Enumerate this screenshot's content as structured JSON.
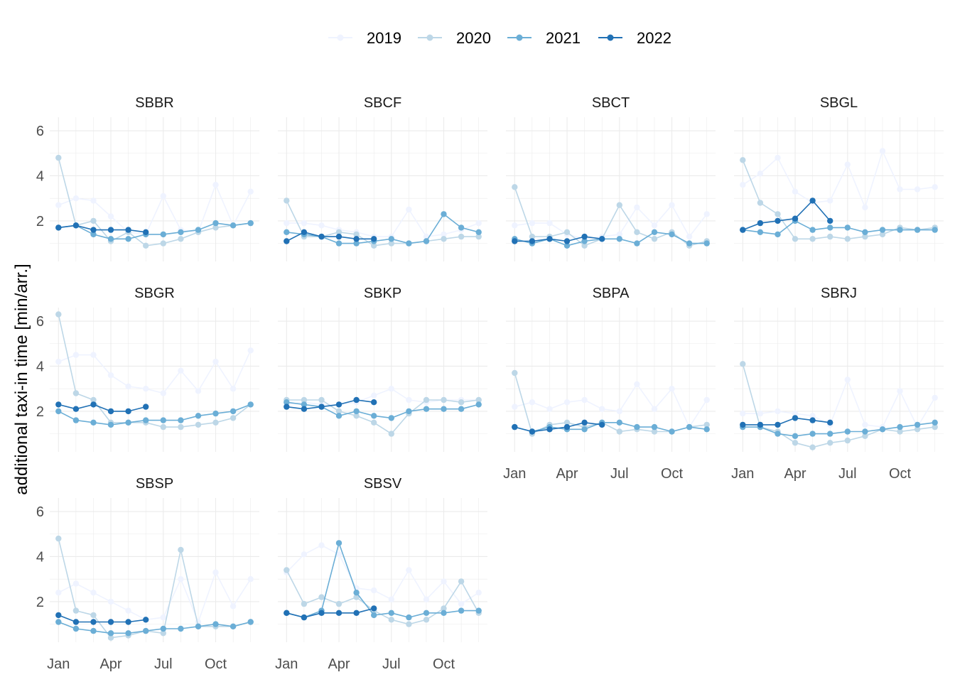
{
  "chart_data": {
    "type": "line",
    "ylabel": "additional taxi-in time [min/arr.]",
    "x_ticks": [
      "Jan",
      "Apr",
      "Jul",
      "Oct"
    ],
    "x_tick_months": [
      1,
      4,
      7,
      10
    ],
    "y_ticks": [
      2,
      4,
      6
    ],
    "ylim": [
      0.2,
      6.6
    ],
    "xlim": [
      0.5,
      12.5
    ],
    "legend_position": "top",
    "grid": true,
    "series_names": [
      "2019",
      "2020",
      "2021",
      "2022"
    ],
    "series_colors": [
      "#eff3ff",
      "#bdd7e7",
      "#6baed6",
      "#2171b5"
    ],
    "months": [
      1,
      2,
      3,
      4,
      5,
      6,
      7,
      8,
      9,
      10,
      11,
      12
    ],
    "panels": [
      {
        "name": "SBBR",
        "series": [
          {
            "name": "2019",
            "values": [
              2.7,
              3.0,
              2.9,
              2.2,
              1.5,
              1.4,
              3.1,
              1.6,
              1.5,
              3.6,
              1.8,
              3.3
            ]
          },
          {
            "name": "2020",
            "values": [
              4.8,
              1.8,
              2.0,
              1.1,
              1.5,
              0.9,
              1.0,
              1.2,
              1.5,
              1.7,
              1.8,
              1.9
            ]
          },
          {
            "name": "2021",
            "values": [
              1.7,
              1.8,
              1.4,
              1.2,
              1.2,
              1.4,
              1.4,
              1.5,
              1.6,
              1.9,
              1.8,
              1.9
            ]
          },
          {
            "name": "2022",
            "values": [
              1.7,
              1.8,
              1.6,
              1.6,
              1.6,
              1.5,
              null,
              null,
              null,
              null,
              null,
              null
            ]
          }
        ]
      },
      {
        "name": "SBCF",
        "series": [
          {
            "name": "2019",
            "values": [
              1.9,
              1.9,
              1.8,
              1.6,
              1.5,
              1.3,
              1.3,
              2.5,
              1.3,
              1.4,
              1.6,
              1.9
            ]
          },
          {
            "name": "2020",
            "values": [
              2.9,
              1.3,
              1.3,
              1.5,
              1.4,
              0.9,
              1.0,
              1.0,
              1.1,
              1.2,
              1.3,
              1.3
            ]
          },
          {
            "name": "2021",
            "values": [
              1.5,
              1.4,
              1.3,
              1.0,
              1.0,
              1.1,
              1.2,
              1.0,
              1.1,
              2.3,
              1.7,
              1.5
            ]
          },
          {
            "name": "2022",
            "values": [
              1.1,
              1.5,
              1.3,
              1.3,
              1.2,
              1.2,
              null,
              null,
              null,
              null,
              null,
              null
            ]
          }
        ]
      },
      {
        "name": "SBCT",
        "series": [
          {
            "name": "2019",
            "values": [
              1.8,
              1.9,
              1.9,
              1.4,
              1.2,
              1.3,
              1.4,
              2.6,
              1.8,
              2.7,
              1.3,
              2.3
            ]
          },
          {
            "name": "2020",
            "values": [
              3.5,
              1.3,
              1.3,
              1.5,
              0.9,
              1.2,
              2.7,
              1.5,
              1.2,
              1.5,
              0.9,
              1.1
            ]
          },
          {
            "name": "2021",
            "values": [
              1.2,
              1.0,
              1.2,
              0.9,
              1.1,
              1.2,
              1.2,
              1.0,
              1.5,
              1.4,
              1.0,
              1.0
            ]
          },
          {
            "name": "2022",
            "values": [
              1.1,
              1.1,
              1.2,
              1.1,
              1.3,
              1.2,
              null,
              null,
              null,
              null,
              null,
              null
            ]
          }
        ]
      },
      {
        "name": "SBGL",
        "series": [
          {
            "name": "2019",
            "values": [
              3.6,
              4.1,
              4.8,
              3.3,
              2.8,
              2.9,
              4.5,
              2.6,
              5.1,
              3.4,
              3.4,
              3.5
            ]
          },
          {
            "name": "2020",
            "values": [
              4.7,
              2.8,
              2.3,
              1.2,
              1.2,
              1.3,
              1.2,
              1.3,
              1.4,
              1.7,
              1.6,
              1.7
            ]
          },
          {
            "name": "2021",
            "values": [
              1.6,
              1.5,
              1.4,
              2.0,
              1.6,
              1.7,
              1.7,
              1.5,
              1.6,
              1.6,
              1.6,
              1.6
            ]
          },
          {
            "name": "2022",
            "values": [
              1.6,
              1.9,
              2.0,
              2.1,
              2.9,
              2.0,
              null,
              null,
              null,
              null,
              null,
              null
            ]
          }
        ]
      },
      {
        "name": "SBGR",
        "series": [
          {
            "name": "2019",
            "values": [
              4.2,
              4.5,
              4.5,
              3.6,
              3.1,
              3.0,
              2.8,
              3.8,
              2.9,
              4.2,
              3.0,
              4.7
            ]
          },
          {
            "name": "2020",
            "values": [
              6.3,
              2.8,
              2.5,
              1.5,
              1.5,
              1.5,
              1.3,
              1.3,
              1.4,
              1.5,
              1.7,
              2.3
            ]
          },
          {
            "name": "2021",
            "values": [
              2.0,
              1.6,
              1.5,
              1.4,
              1.5,
              1.6,
              1.6,
              1.6,
              1.8,
              1.9,
              2.0,
              2.3
            ]
          },
          {
            "name": "2022",
            "values": [
              2.3,
              2.1,
              2.3,
              2.0,
              2.0,
              2.2,
              null,
              null,
              null,
              null,
              null,
              null
            ]
          }
        ]
      },
      {
        "name": "SBKP",
        "series": [
          {
            "name": "2019",
            "values": [
              2.3,
              2.4,
              2.3,
              2.3,
              2.4,
              2.7,
              3.0,
              2.5,
              2.4,
              2.5,
              2.5,
              2.5
            ]
          },
          {
            "name": "2020",
            "values": [
              2.5,
              2.5,
              2.5,
              2.0,
              1.8,
              1.5,
              1.0,
              1.9,
              2.5,
              2.5,
              2.4,
              2.5
            ]
          },
          {
            "name": "2021",
            "values": [
              2.4,
              2.3,
              2.2,
              1.8,
              2.0,
              1.8,
              1.7,
              2.0,
              2.1,
              2.1,
              2.1,
              2.3
            ]
          },
          {
            "name": "2022",
            "values": [
              2.2,
              2.1,
              2.2,
              2.3,
              2.5,
              2.4,
              null,
              null,
              null,
              null,
              null,
              null
            ]
          }
        ]
      },
      {
        "name": "SBPA",
        "series": [
          {
            "name": "2019",
            "values": [
              2.2,
              2.4,
              2.1,
              2.4,
              2.5,
              2.1,
              2.0,
              3.2,
              2.1,
              3.0,
              1.3,
              2.5
            ]
          },
          {
            "name": "2020",
            "values": [
              3.7,
              1.0,
              1.4,
              1.5,
              1.3,
              1.5,
              1.1,
              1.2,
              1.1,
              1.1,
              1.3,
              1.4
            ]
          },
          {
            "name": "2021",
            "values": [
              1.3,
              1.1,
              1.3,
              1.2,
              1.2,
              1.5,
              1.5,
              1.3,
              1.3,
              1.1,
              1.3,
              1.2
            ]
          },
          {
            "name": "2022",
            "values": [
              1.3,
              1.1,
              1.2,
              1.3,
              1.5,
              1.4,
              null,
              null,
              null,
              null,
              null,
              null
            ]
          }
        ]
      },
      {
        "name": "SBRJ",
        "series": [
          {
            "name": "2019",
            "values": [
              1.9,
              1.9,
              2.0,
              1.9,
              1.8,
              1.4,
              3.4,
              1.4,
              1.3,
              2.9,
              1.3,
              2.6
            ]
          },
          {
            "name": "2020",
            "values": [
              4.1,
              1.3,
              1.1,
              0.6,
              0.4,
              0.6,
              0.7,
              0.9,
              1.2,
              1.1,
              1.2,
              1.3
            ]
          },
          {
            "name": "2021",
            "values": [
              1.3,
              1.3,
              1.0,
              0.9,
              1.0,
              1.0,
              1.1,
              1.1,
              1.2,
              1.3,
              1.4,
              1.5
            ]
          },
          {
            "name": "2022",
            "values": [
              1.4,
              1.4,
              1.4,
              1.7,
              1.6,
              1.5,
              null,
              null,
              null,
              null,
              null,
              null
            ]
          }
        ]
      },
      {
        "name": "SBSP",
        "series": [
          {
            "name": "2019",
            "values": [
              2.4,
              2.8,
              2.4,
              2.0,
              1.6,
              1.2,
              1.3,
              3.0,
              1.1,
              3.3,
              1.8,
              3.0
            ]
          },
          {
            "name": "2020",
            "values": [
              4.8,
              1.6,
              1.4,
              0.4,
              0.5,
              0.7,
              0.6,
              4.3,
              0.9,
              0.9,
              0.9,
              1.1
            ]
          },
          {
            "name": "2021",
            "values": [
              1.1,
              0.8,
              0.7,
              0.6,
              0.6,
              0.7,
              0.8,
              0.8,
              0.9,
              1.0,
              0.9,
              1.1
            ]
          },
          {
            "name": "2022",
            "values": [
              1.4,
              1.1,
              1.1,
              1.1,
              1.1,
              1.2,
              null,
              null,
              null,
              null,
              null,
              null
            ]
          }
        ]
      },
      {
        "name": "SBSV",
        "series": [
          {
            "name": "2019",
            "values": [
              3.3,
              4.1,
              4.5,
              4.1,
              2.6,
              2.5,
              2.1,
              3.4,
              2.1,
              2.9,
              1.9,
              2.4
            ]
          },
          {
            "name": "2020",
            "values": [
              3.4,
              1.9,
              2.2,
              1.9,
              2.2,
              1.6,
              1.2,
              1.0,
              1.2,
              1.7,
              2.9,
              1.5
            ]
          },
          {
            "name": "2021",
            "values": [
              1.5,
              1.3,
              1.6,
              4.6,
              2.4,
              1.4,
              1.5,
              1.3,
              1.5,
              1.5,
              1.6,
              1.6
            ]
          },
          {
            "name": "2022",
            "values": [
              1.5,
              1.3,
              1.5,
              1.5,
              1.5,
              1.7,
              null,
              null,
              null,
              null,
              null,
              null
            ]
          }
        ]
      }
    ]
  }
}
